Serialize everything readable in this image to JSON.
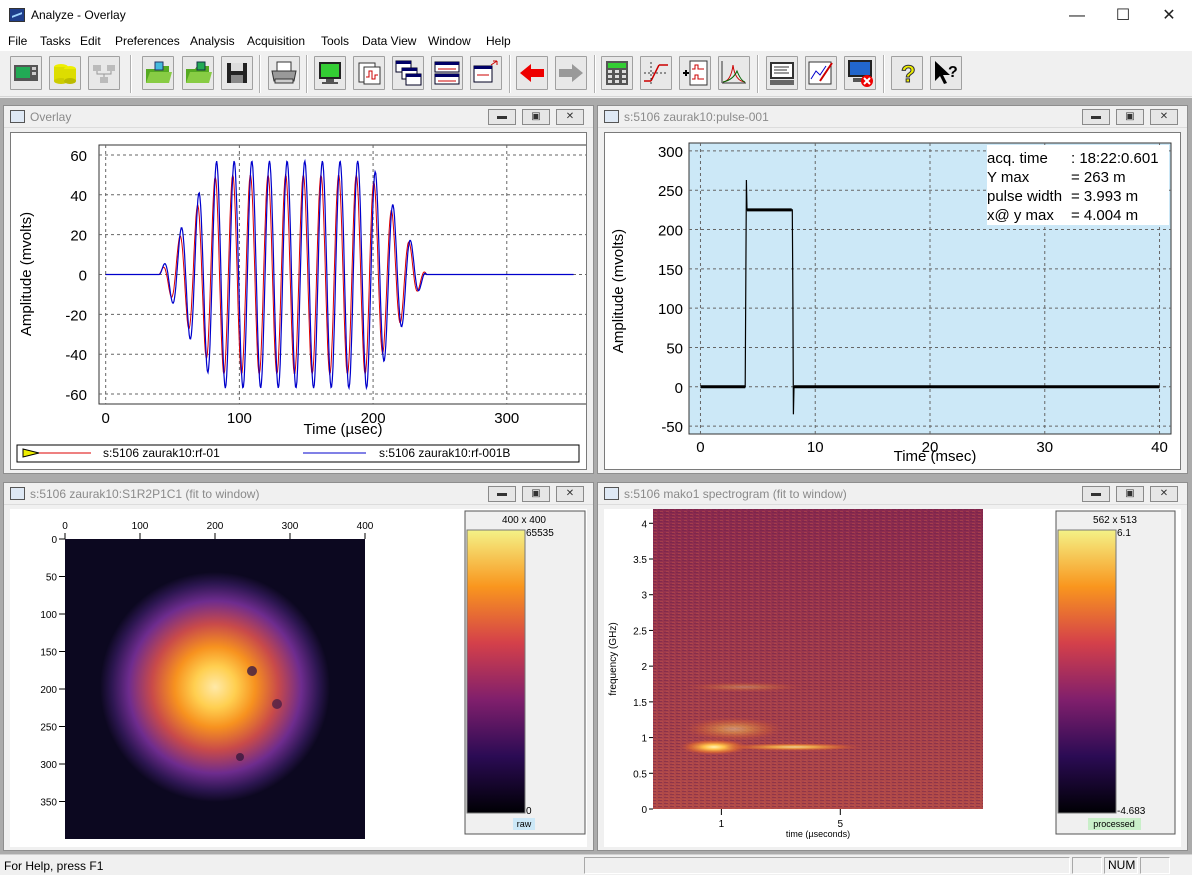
{
  "window": {
    "title": "Analyze - Overlay"
  },
  "menu": [
    "File",
    "Tasks",
    "Edit",
    "Preferences",
    "Analysis",
    "Acquisition",
    "Tools",
    "Data View",
    "Window",
    "Help"
  ],
  "toolbar": {
    "buttons": [
      "scope-icon",
      "database-icon",
      "network-icon",
      "open-folder-icon",
      "open-folder-2-icon",
      "save-icon",
      "print-icon",
      "monitor-icon",
      "waveform-doc-icon",
      "multi-window-icon",
      "tile-windows-icon",
      "cascade-windows-icon",
      "back-arrow-icon",
      "forward-arrow-icon",
      "calculator-icon",
      "step-function-icon",
      "add-trace-icon",
      "peak-icon",
      "terminal-icon",
      "edit-graph-icon",
      "disconnect-icon",
      "help-icon",
      "context-help-icon"
    ]
  },
  "windows": {
    "overlay": {
      "title": "Overlay",
      "ylabel": "Amplitude (mvolts)",
      "xlabel": "Time (µsec)",
      "yticks": [
        "60",
        "40",
        "20",
        "0",
        "-20",
        "-40",
        "-60"
      ],
      "xticks": [
        "0",
        "100",
        "200",
        "300"
      ],
      "legend": [
        "s:5106 zaurak10:rf-01",
        "s:5106 zaurak10:rf-001B"
      ]
    },
    "pulse": {
      "title": "s:5106 zaurak10:pulse-001",
      "ylabel": "Amplitude (mvolts)",
      "xlabel": "Time (msec)",
      "yticks": [
        "300",
        "250",
        "200",
        "150",
        "100",
        "50",
        "0",
        "-50"
      ],
      "xticks": [
        "0",
        "10",
        "20",
        "30",
        "40"
      ],
      "info": [
        [
          "acq. time",
          ": 18:22:0.601"
        ],
        [
          "Y max",
          "= 263 m"
        ],
        [
          "pulse width",
          "= 3.993 m"
        ],
        [
          "x@ y max",
          "= 4.004 m"
        ]
      ]
    },
    "image": {
      "title": "s:5106 zaurak10:S1R2P1C1 (fit to window)",
      "xticks": [
        "0",
        "100",
        "200",
        "300",
        "400"
      ],
      "yticks": [
        "0",
        "50",
        "100",
        "150",
        "200",
        "250",
        "300",
        "350"
      ],
      "cbar_size": "400 x 400",
      "cbar_max": "65535",
      "cbar_min": "0",
      "cbar_tag": "raw"
    },
    "spectrogram": {
      "title": "s:5106 mako1 spectrogram (fit to window)",
      "ylabel": "frequency (GHz)",
      "xlabel": "time (µseconds)",
      "yticks": [
        "4",
        "3.5",
        "3",
        "2.5",
        "2",
        "1.5",
        "1",
        "0.5",
        "0"
      ],
      "xticks": [
        "1",
        "5"
      ],
      "cbar_size": "562 x 513",
      "cbar_max": "6.1",
      "cbar_min": "-4.683",
      "cbar_tag": "processed"
    }
  },
  "status": {
    "help": "For Help, press F1",
    "num": "NUM"
  },
  "chart_data": [
    {
      "type": "line",
      "title": "",
      "xlabel": "Time (µsec)",
      "ylabel": "Amplitude (mvolts)",
      "xlim": [
        -5,
        360
      ],
      "ylim": [
        -65,
        65
      ],
      "grid": true,
      "legend": "bottom",
      "series": [
        {
          "name": "s:5106 zaurak10:rf-01",
          "color": "#dd0000",
          "envelope_peak": 50,
          "start": 40,
          "end": 240,
          "period": 13.2
        },
        {
          "name": "s:5106 zaurak10:rf-001B",
          "color": "#0000cc",
          "envelope_peak": 57,
          "start": 40,
          "end": 240,
          "period": 13.2
        }
      ]
    },
    {
      "type": "line",
      "title": "",
      "xlabel": "Time (msec)",
      "ylabel": "Amplitude (mvolts)",
      "xlim": [
        -1,
        41
      ],
      "ylim": [
        -60,
        310
      ],
      "grid": true,
      "series": [
        {
          "name": "",
          "color": "#000000",
          "x": [
            0,
            3.9,
            4.0,
            4.05,
            4.2,
            8.0,
            8.05,
            8.1,
            8.15,
            8.3,
            40
          ],
          "y": [
            0,
            0,
            263,
            225,
            225,
            225,
            110,
            -35,
            0,
            0,
            0
          ]
        }
      ]
    }
  ]
}
